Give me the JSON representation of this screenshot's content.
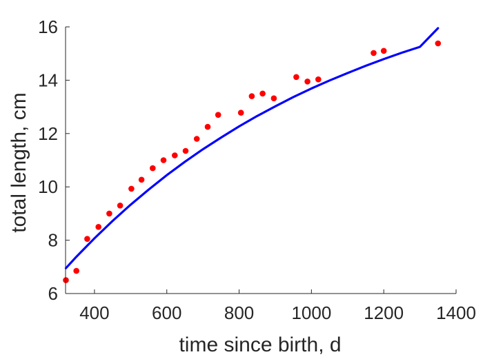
{
  "chart_data": {
    "type": "scatter",
    "title": "",
    "xlabel": "time since birth, d",
    "ylabel": "total length, cm",
    "xlim": [
      320,
      1400
    ],
    "ylim": [
      6,
      16
    ],
    "xticks": [
      400,
      600,
      800,
      1000,
      1200,
      1400
    ],
    "yticks": [
      6,
      8,
      10,
      12,
      14,
      16
    ],
    "grid": false,
    "legend": "none",
    "series": [
      {
        "kind": "points",
        "color": "#ff0000",
        "points": [
          [
            321,
            6.5
          ],
          [
            350,
            6.85
          ],
          [
            380,
            8.05
          ],
          [
            411,
            8.5
          ],
          [
            441,
            9.0
          ],
          [
            471,
            9.3
          ],
          [
            502,
            9.93
          ],
          [
            530,
            10.27
          ],
          [
            561,
            10.7
          ],
          [
            591,
            11.0
          ],
          [
            622,
            11.18
          ],
          [
            652,
            11.35
          ],
          [
            683,
            11.8
          ],
          [
            713,
            12.25
          ],
          [
            742,
            12.7
          ],
          [
            805,
            12.78
          ],
          [
            835,
            13.4
          ],
          [
            865,
            13.5
          ],
          [
            896,
            13.32
          ],
          [
            958,
            14.12
          ],
          [
            989,
            13.95
          ],
          [
            1019,
            14.03
          ],
          [
            1172,
            15.02
          ],
          [
            1200,
            15.1
          ],
          [
            1350,
            15.38
          ]
        ]
      },
      {
        "kind": "line",
        "color": "#0000ff",
        "points": [
          [
            321,
            6.95
          ],
          [
            350,
            7.38
          ],
          [
            400,
            8.07
          ],
          [
            450,
            8.72
          ],
          [
            500,
            9.33
          ],
          [
            550,
            9.9
          ],
          [
            600,
            10.44
          ],
          [
            650,
            10.94
          ],
          [
            700,
            11.41
          ],
          [
            750,
            11.85
          ],
          [
            800,
            12.27
          ],
          [
            850,
            12.66
          ],
          [
            900,
            13.02
          ],
          [
            950,
            13.37
          ],
          [
            1000,
            13.69
          ],
          [
            1050,
            13.99
          ],
          [
            1100,
            14.27
          ],
          [
            1150,
            14.54
          ],
          [
            1200,
            14.79
          ],
          [
            1250,
            15.03
          ],
          [
            1300,
            15.25
          ],
          [
            1350,
            15.95
          ]
        ]
      }
    ]
  }
}
